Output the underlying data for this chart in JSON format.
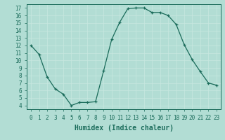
{
  "x": [
    0,
    1,
    2,
    3,
    4,
    5,
    6,
    7,
    8,
    9,
    10,
    11,
    12,
    13,
    14,
    15,
    16,
    17,
    18,
    19,
    20,
    21,
    22,
    23
  ],
  "y": [
    12,
    10.8,
    7.8,
    6.2,
    5.5,
    4.0,
    4.4,
    4.4,
    4.5,
    8.6,
    12.8,
    15.1,
    16.9,
    17.0,
    17.0,
    16.4,
    16.4,
    16.0,
    14.8,
    12.1,
    10.1,
    8.5,
    7.0,
    6.7
  ],
  "xlim": [
    -0.5,
    23.5
  ],
  "ylim": [
    3.5,
    17.5
  ],
  "xticks": [
    0,
    1,
    2,
    3,
    4,
    5,
    6,
    7,
    8,
    9,
    10,
    11,
    12,
    13,
    14,
    15,
    16,
    17,
    18,
    19,
    20,
    21,
    22,
    23
  ],
  "yticks": [
    4,
    5,
    6,
    7,
    8,
    9,
    10,
    11,
    12,
    13,
    14,
    15,
    16,
    17
  ],
  "xlabel": "Humidex (Indice chaleur)",
  "line_color": "#1a6b5a",
  "bg_color": "#b2ddd4",
  "grid_color": "#c8e8e0",
  "tick_fontsize": 5.5,
  "xlabel_fontsize": 7.0
}
